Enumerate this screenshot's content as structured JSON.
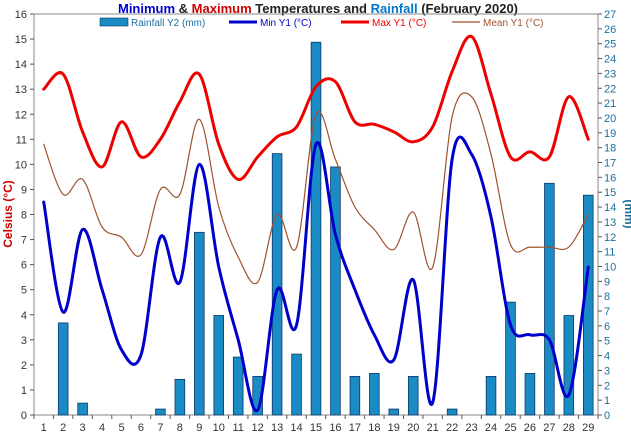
{
  "chart_data": {
    "type": "bar+line",
    "title_parts": [
      {
        "text": "Minimum",
        "color": "#0000cc"
      },
      {
        "text": " & ",
        "color": "#222222"
      },
      {
        "text": "Maximum",
        "color": "#cc0000"
      },
      {
        "text": " Temperatures and ",
        "color": "#222222"
      },
      {
        "text": "Rainfall",
        "color": "#0077cc"
      },
      {
        "text": " (February 2020)",
        "color": "#222222"
      }
    ],
    "ylabel_left": "Celsius (°C)",
    "ylabel_right": "(mm)",
    "ylim_left": [
      0,
      16
    ],
    "ylim_right": [
      0,
      27
    ],
    "x": [
      1,
      2,
      3,
      4,
      5,
      6,
      7,
      8,
      9,
      10,
      11,
      12,
      13,
      14,
      15,
      16,
      17,
      18,
      19,
      20,
      21,
      22,
      23,
      24,
      25,
      26,
      27,
      28,
      29
    ],
    "legend": [
      {
        "name": "Rainfall Y2 (mm)",
        "color": "#1a8bc4",
        "kind": "bar"
      },
      {
        "name": "Min Y1 (°C)",
        "color": "#0000cc",
        "kind": "line"
      },
      {
        "name": "Max Y1 (°C)",
        "color": "#ee0000",
        "kind": "line"
      },
      {
        "name": "Mean Y1 (°C)",
        "color": "#a0522d",
        "kind": "line"
      }
    ],
    "rainfall": [
      0,
      6.2,
      0.8,
      0,
      0,
      0,
      0.4,
      2.4,
      12.3,
      6.7,
      3.9,
      2.6,
      17.6,
      4.1,
      25.1,
      16.7,
      2.6,
      2.8,
      0.4,
      2.6,
      0,
      0.4,
      0,
      2.6,
      7.6,
      2.8,
      15.6,
      6.7,
      14.8
    ],
    "min_temp": [
      8.5,
      4.1,
      7.4,
      5.0,
      2.6,
      2.4,
      7.1,
      5.3,
      10.0,
      5.9,
      3.0,
      0.2,
      5.0,
      3.6,
      10.8,
      7.2,
      5.0,
      3.2,
      2.2,
      5.4,
      0.5,
      10.2,
      10.4,
      7.9,
      3.6,
      3.2,
      3.0,
      0.8,
      5.9
    ],
    "max_temp": [
      13.0,
      13.6,
      11.3,
      9.9,
      11.7,
      10.3,
      11.0,
      12.5,
      13.6,
      10.8,
      9.4,
      10.3,
      11.1,
      11.5,
      13.1,
      13.3,
      11.7,
      11.6,
      11.3,
      10.9,
      11.5,
      13.7,
      15.1,
      12.8,
      10.3,
      10.5,
      10.3,
      12.7,
      11.0
    ],
    "mean_temp": [
      10.8,
      8.8,
      9.4,
      7.5,
      7.1,
      6.4,
      9.0,
      8.8,
      11.8,
      8.3,
      6.3,
      5.3,
      8.0,
      6.7,
      12.0,
      10.2,
      8.3,
      7.4,
      6.6,
      8.1,
      5.9,
      11.9,
      12.7,
      10.4,
      6.8,
      6.7,
      6.7,
      6.7,
      8.0
    ]
  }
}
